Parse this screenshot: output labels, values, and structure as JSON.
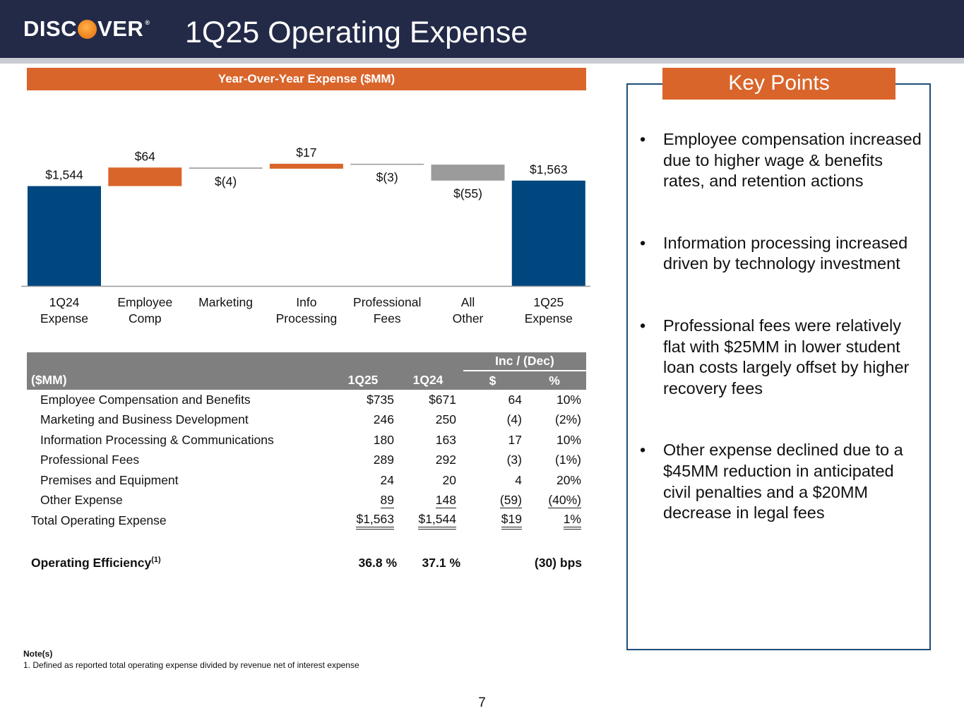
{
  "header": {
    "logo_left": "DISC",
    "logo_right": "VER",
    "logo_mark": "®",
    "title": "1Q25 Operating Expense"
  },
  "chart_section": {
    "banner": "Year-Over-Year Expense ($MM)"
  },
  "chart_data": {
    "type": "bar",
    "subtype": "waterfall",
    "title": "Year-Over-Year Expense ($MM)",
    "categories": [
      "1Q24\nExpense",
      "Employee\nComp",
      "Marketing",
      "Info\nProcessing",
      "Professional\nFees",
      "All\nOther",
      "1Q25\nExpense"
    ],
    "values": [
      1544,
      64,
      -4,
      17,
      -3,
      -55,
      1563
    ],
    "kinds": [
      "total",
      "increase",
      "decrease",
      "increase",
      "decrease",
      "decrease",
      "total"
    ],
    "labels": [
      "$1,544",
      "$64",
      "$(4)",
      "$17",
      "$(3)",
      "$(55)",
      "$1,563"
    ],
    "colors": {
      "total": "#00467f",
      "increase": "#d9652b",
      "decrease": "#9b9b9b"
    },
    "axis_floor": 1200,
    "axis_ceiling": 1650,
    "xlabel": "",
    "ylabel": ""
  },
  "table": {
    "group_header": "Inc / (Dec)",
    "columns": [
      "($MM)",
      "1Q25",
      "1Q24",
      "$",
      "%"
    ],
    "rows": [
      {
        "label": "Employee Compensation and Benefits",
        "q25": "$735",
        "q24": "$671",
        "inc": "64",
        "pct": "10%"
      },
      {
        "label": "Marketing and Business Development",
        "q25": "246",
        "q24": "250",
        "inc": "(4)",
        "pct": "(2%)"
      },
      {
        "label": "Information Processing & Communications",
        "q25": "180",
        "q24": "163",
        "inc": "17",
        "pct": "10%"
      },
      {
        "label": "Professional Fees",
        "q25": "289",
        "q24": "292",
        "inc": "(3)",
        "pct": "(1%)"
      },
      {
        "label": "Premises and Equipment",
        "q25": "24",
        "q24": "20",
        "inc": "4",
        "pct": "20%"
      },
      {
        "label": "Other Expense",
        "q25": "89",
        "q24": "148",
        "inc": "(59)",
        "pct": "(40%)"
      }
    ],
    "total": {
      "label": "Total Operating Expense",
      "q25": "$1,563",
      "q24": "$1,544",
      "inc": "$19",
      "pct": "1%"
    },
    "efficiency": {
      "label": "Operating Efficiency",
      "sup": "(1)",
      "q25": "36.8 %",
      "q24": "37.1 %",
      "change": "(30) bps"
    }
  },
  "notes": {
    "heading": "Note(s)",
    "items": [
      "1.   Defined as reported total operating expense divided by revenue net of interest expense"
    ]
  },
  "key_points": {
    "title": "Key Points",
    "bullet": "•",
    "items": [
      "Employee compensation increased due to higher wage & benefits rates, and retention actions",
      "Information processing increased driven by technology investment",
      "Professional fees were relatively flat with $25MM in lower student loan costs largely offset by higher recovery fees",
      "Other expense declined due to a $45MM reduction in anticipated civil penalties and a $20MM decrease in legal fees"
    ]
  },
  "page_number": "7"
}
